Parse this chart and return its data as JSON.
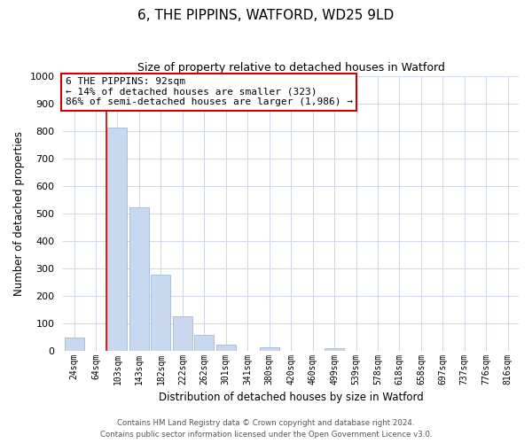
{
  "title": "6, THE PIPPINS, WATFORD, WD25 9LD",
  "subtitle": "Size of property relative to detached houses in Watford",
  "xlabel": "Distribution of detached houses by size in Watford",
  "ylabel": "Number of detached properties",
  "bar_labels": [
    "24sqm",
    "64sqm",
    "103sqm",
    "143sqm",
    "182sqm",
    "222sqm",
    "262sqm",
    "301sqm",
    "341sqm",
    "380sqm",
    "420sqm",
    "460sqm",
    "499sqm",
    "539sqm",
    "578sqm",
    "618sqm",
    "658sqm",
    "697sqm",
    "737sqm",
    "776sqm",
    "816sqm"
  ],
  "bar_values": [
    46,
    0,
    810,
    520,
    275,
    125,
    57,
    22,
    0,
    12,
    0,
    0,
    8,
    0,
    0,
    0,
    0,
    0,
    0,
    0,
    0
  ],
  "bar_color": "#c8d9ef",
  "bar_edge_color": "#a0b8d8",
  "highlight_line_color": "#cc0000",
  "annotation_line1": "6 THE PIPPINS: 92sqm",
  "annotation_line2": "← 14% of detached houses are smaller (323)",
  "annotation_line3": "86% of semi-detached houses are larger (1,986) →",
  "annotation_box_color": "#ffffff",
  "annotation_box_edge_color": "#cc0000",
  "ylim": [
    0,
    1000
  ],
  "yticks": [
    0,
    100,
    200,
    300,
    400,
    500,
    600,
    700,
    800,
    900,
    1000
  ],
  "footer_line1": "Contains HM Land Registry data © Crown copyright and database right 2024.",
  "footer_line2": "Contains public sector information licensed under the Open Government Licence v3.0.",
  "background_color": "#ffffff",
  "grid_color": "#d0d8e8",
  "title_fontsize": 11,
  "subtitle_fontsize": 9
}
